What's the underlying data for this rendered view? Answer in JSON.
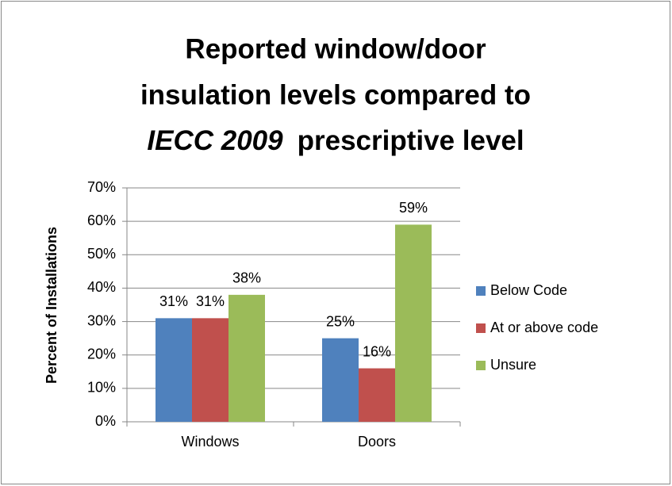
{
  "chart_data": {
    "type": "bar",
    "title": [
      "Reported window/door",
      "insulation levels compared to",
      "IECC 2009",
      "prescriptive level"
    ],
    "y_label": "Percent of Installations",
    "categories": [
      "Windows",
      "Doors"
    ],
    "series": [
      {
        "name": "Below Code",
        "color": "#4f81bd",
        "values": [
          31,
          25
        ],
        "value_labels": [
          "31%",
          "25%"
        ]
      },
      {
        "name": "At or above code",
        "color": "#c0504d",
        "values": [
          31,
          16
        ],
        "value_labels": [
          "31%",
          "16%"
        ]
      },
      {
        "name": "Unsure",
        "color": "#9bbb59",
        "values": [
          38,
          59
        ],
        "value_labels": [
          "38%",
          "59%"
        ]
      }
    ],
    "ylim": [
      0,
      70
    ],
    "yticks": [
      {
        "value": 0,
        "label": "0%"
      },
      {
        "value": 10,
        "label": "10%"
      },
      {
        "value": 20,
        "label": "20%"
      },
      {
        "value": 30,
        "label": "30%"
      },
      {
        "value": 40,
        "label": "40%"
      },
      {
        "value": 50,
        "label": "50%"
      },
      {
        "value": 60,
        "label": "60%"
      },
      {
        "value": 70,
        "label": "70%"
      }
    ],
    "grid": true,
    "legend": "right"
  }
}
